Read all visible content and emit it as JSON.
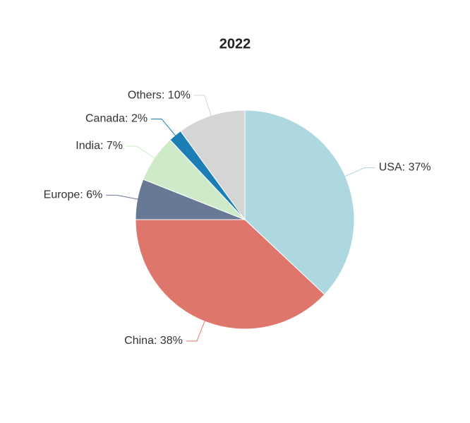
{
  "chart_data": {
    "type": "pie",
    "title": "2022",
    "values": [
      37,
      38,
      6,
      7,
      2,
      10
    ],
    "value_labels": [
      "USA: 37%",
      "China: 38%",
      "Europe: 6%",
      "India: 7%",
      "Canada: 2%",
      "Others: 10%"
    ],
    "colors": [
      "#add8e0",
      "#de766c",
      "#677995",
      "#cfeac8",
      "#1d7eb5",
      "#d5d5d5"
    ]
  }
}
